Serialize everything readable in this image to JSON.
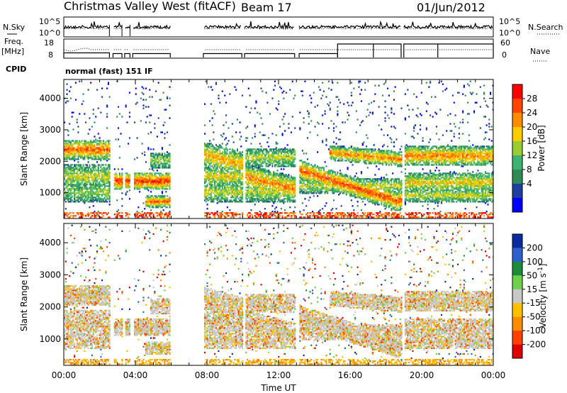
{
  "header": {
    "station": "Christmas Valley West (fitACF)",
    "beam": "Beam 17",
    "date": "01/Jun/2012"
  },
  "left_labels": {
    "nsky": "N.Sky",
    "freq": "Freq.",
    "freq_unit": "[MHz]",
    "cpid": "CPID"
  },
  "right_labels": {
    "nsearch": "N.Search",
    "nave": "Nave"
  },
  "cpid_text": "normal (fast) 151 IF",
  "chart_data": [
    {
      "type": "line",
      "name": "noise",
      "y_ticks_left": [
        "10^5",
        "10^0"
      ],
      "y_ticks_right": [
        "10^5",
        "10^0"
      ],
      "series": [
        {
          "name": "N.Sky",
          "note": "solid"
        },
        {
          "name": "N.Search",
          "note": "dotted"
        }
      ]
    },
    {
      "type": "line",
      "name": "frequency",
      "y_ticks_left": [
        "18",
        "8"
      ],
      "y_ticks_right": [
        "60",
        "0"
      ],
      "series": [
        {
          "name": "Freq.",
          "note": "solid"
        },
        {
          "name": "Nave",
          "note": "dotted"
        }
      ]
    },
    {
      "type": "heatmap",
      "name": "power",
      "ylabel": "Slant Range [km]",
      "y_ticks": [
        "4000",
        "3000",
        "2000",
        "1000"
      ],
      "ylim": [
        180,
        4600
      ],
      "xlim": [
        0,
        24
      ],
      "colorbar": {
        "label": "Power [dB]",
        "ticks": [
          "28",
          "24",
          "20",
          "16",
          "12",
          "8",
          "4"
        ],
        "colors": [
          "#ff0000",
          "#ff4500",
          "#ff8c00",
          "#ffcc00",
          "#9acd32",
          "#3cb371",
          "#2e8b57",
          "#1e3ea0",
          "#0000ff"
        ]
      }
    },
    {
      "type": "heatmap",
      "name": "velocity",
      "ylabel": "Slant Range [km]",
      "y_ticks": [
        "4000",
        "3000",
        "2000",
        "1000"
      ],
      "ylim": [
        180,
        4600
      ],
      "xlim": [
        0,
        24
      ],
      "xlabel": "Time UT",
      "x_ticks": [
        "00:00",
        "04:00",
        "08:00",
        "12:00",
        "16:00",
        "20:00",
        "00:00"
      ],
      "colorbar": {
        "label": "Velocity [m s",
        "label_sup": "-1",
        "label_end": "]",
        "ticks": [
          "200",
          "100",
          "50",
          "15",
          "-15",
          "-50",
          "-100",
          "-200"
        ],
        "colors": [
          "#0a2aa0",
          "#2d5fd0",
          "#1a8c3a",
          "#6fd04a",
          "#c8c8c8",
          "#ffc000",
          "#ff8c00",
          "#ff4000",
          "#e00000"
        ]
      }
    }
  ]
}
